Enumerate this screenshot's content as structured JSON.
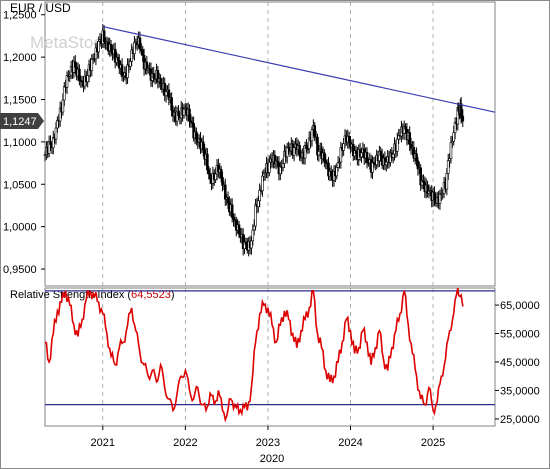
{
  "chart_data": [
    {
      "type": "candlestick",
      "title": "EUR / USD",
      "watermark": "MetaStock",
      "y_ticks": [
        "1,2500",
        "1,2000",
        "1,1500",
        "1,1000",
        "1,0500",
        "1,0000",
        "0,9500"
      ],
      "y_tick_values": [
        1.25,
        1.2,
        1.15,
        1.1,
        1.05,
        1.0,
        0.95
      ],
      "ylim": [
        0.93,
        1.265
      ],
      "last_price_label": "1,1247",
      "last_price": 1.1247,
      "trendline": [
        {
          "date": 2021.0,
          "price": 1.236
        },
        {
          "date": 2025.75,
          "price": 1.135
        }
      ],
      "closes": [
        [
          2020.3,
          1.085
        ],
        [
          2020.35,
          1.095
        ],
        [
          2020.4,
          1.1
        ],
        [
          2020.45,
          1.125
        ],
        [
          2020.5,
          1.14
        ],
        [
          2020.55,
          1.17
        ],
        [
          2020.6,
          1.18
        ],
        [
          2020.65,
          1.19
        ],
        [
          2020.7,
          1.18
        ],
        [
          2020.75,
          1.17
        ],
        [
          2020.8,
          1.175
        ],
        [
          2020.85,
          1.19
        ],
        [
          2020.9,
          1.2
        ],
        [
          2020.95,
          1.215
        ],
        [
          2021.0,
          1.225
        ],
        [
          2021.05,
          1.215
        ],
        [
          2021.1,
          1.21
        ],
        [
          2021.15,
          1.2
        ],
        [
          2021.2,
          1.19
        ],
        [
          2021.25,
          1.175
        ],
        [
          2021.3,
          1.185
        ],
        [
          2021.35,
          1.205
        ],
        [
          2021.4,
          1.22
        ],
        [
          2021.45,
          1.215
        ],
        [
          2021.5,
          1.19
        ],
        [
          2021.55,
          1.185
        ],
        [
          2021.6,
          1.175
        ],
        [
          2021.65,
          1.18
        ],
        [
          2021.7,
          1.17
        ],
        [
          2021.75,
          1.16
        ],
        [
          2021.8,
          1.155
        ],
        [
          2021.85,
          1.13
        ],
        [
          2021.9,
          1.13
        ],
        [
          2021.95,
          1.135
        ],
        [
          2022.0,
          1.14
        ],
        [
          2022.05,
          1.13
        ],
        [
          2022.1,
          1.11
        ],
        [
          2022.15,
          1.1
        ],
        [
          2022.2,
          1.095
        ],
        [
          2022.25,
          1.08
        ],
        [
          2022.3,
          1.055
        ],
        [
          2022.35,
          1.06
        ],
        [
          2022.4,
          1.07
        ],
        [
          2022.45,
          1.05
        ],
        [
          2022.5,
          1.03
        ],
        [
          2022.55,
          1.02
        ],
        [
          2022.6,
          1.005
        ],
        [
          2022.65,
          0.995
        ],
        [
          2022.7,
          0.98
        ],
        [
          2022.75,
          0.975
        ],
        [
          2022.8,
          0.98
        ],
        [
          2022.85,
          1.02
        ],
        [
          2022.9,
          1.04
        ],
        [
          2022.95,
          1.065
        ],
        [
          2023.0,
          1.07
        ],
        [
          2023.05,
          1.08
        ],
        [
          2023.1,
          1.075
        ],
        [
          2023.15,
          1.065
        ],
        [
          2023.2,
          1.085
        ],
        [
          2023.25,
          1.095
        ],
        [
          2023.3,
          1.09
        ],
        [
          2023.35,
          1.095
        ],
        [
          2023.4,
          1.08
        ],
        [
          2023.45,
          1.09
        ],
        [
          2023.5,
          1.1
        ],
        [
          2023.55,
          1.12
        ],
        [
          2023.6,
          1.09
        ],
        [
          2023.65,
          1.085
        ],
        [
          2023.7,
          1.075
        ],
        [
          2023.75,
          1.06
        ],
        [
          2023.8,
          1.06
        ],
        [
          2023.85,
          1.075
        ],
        [
          2023.9,
          1.095
        ],
        [
          2023.95,
          1.105
        ],
        [
          2024.0,
          1.095
        ],
        [
          2024.05,
          1.085
        ],
        [
          2024.1,
          1.085
        ],
        [
          2024.15,
          1.09
        ],
        [
          2024.2,
          1.08
        ],
        [
          2024.25,
          1.07
        ],
        [
          2024.3,
          1.075
        ],
        [
          2024.35,
          1.085
        ],
        [
          2024.4,
          1.075
        ],
        [
          2024.45,
          1.08
        ],
        [
          2024.5,
          1.085
        ],
        [
          2024.55,
          1.095
        ],
        [
          2024.6,
          1.11
        ],
        [
          2024.65,
          1.115
        ],
        [
          2024.7,
          1.105
        ],
        [
          2024.75,
          1.09
        ],
        [
          2024.8,
          1.08
        ],
        [
          2024.85,
          1.055
        ],
        [
          2024.9,
          1.045
        ],
        [
          2024.95,
          1.04
        ],
        [
          2025.0,
          1.035
        ],
        [
          2025.05,
          1.03
        ],
        [
          2025.1,
          1.04
        ],
        [
          2025.15,
          1.05
        ],
        [
          2025.2,
          1.085
        ],
        [
          2025.25,
          1.11
        ],
        [
          2025.3,
          1.135
        ],
        [
          2025.33,
          1.14
        ],
        [
          2025.36,
          1.125
        ]
      ]
    },
    {
      "type": "line",
      "title_prefix": "Relative Strength Index (",
      "title_value": "64,5523",
      "title_suffix": ")",
      "y_ticks": [
        "65,0000",
        "55,0000",
        "45,0000",
        "35,0000",
        "25,0000"
      ],
      "y_tick_values": [
        65,
        55,
        45,
        35,
        25
      ],
      "ylim": [
        22.5,
        71
      ],
      "reference_lines": [
        70,
        30
      ],
      "x_ticks": [
        "2021",
        "2022",
        "2023",
        "2024",
        "2025"
      ],
      "x_tick_values": [
        2021.0,
        2022.0,
        2023.0,
        2024.0,
        2025.0
      ],
      "x_label": "2020",
      "x_range": [
        2020.3,
        2025.75
      ],
      "series": [
        {
          "values": [
            [
              2020.3,
              52
            ],
            [
              2020.35,
              45
            ],
            [
              2020.4,
              55
            ],
            [
              2020.45,
              63
            ],
            [
              2020.5,
              66
            ],
            [
              2020.55,
              70
            ],
            [
              2020.6,
              65
            ],
            [
              2020.65,
              58
            ],
            [
              2020.7,
              54
            ],
            [
              2020.75,
              60
            ],
            [
              2020.8,
              67
            ],
            [
              2020.85,
              70
            ],
            [
              2020.9,
              68
            ],
            [
              2020.95,
              66
            ],
            [
              2021.0,
              62
            ],
            [
              2021.05,
              55
            ],
            [
              2021.1,
              47
            ],
            [
              2021.15,
              44
            ],
            [
              2021.2,
              50
            ],
            [
              2021.25,
              52
            ],
            [
              2021.3,
              58
            ],
            [
              2021.35,
              64
            ],
            [
              2021.4,
              56
            ],
            [
              2021.45,
              48
            ],
            [
              2021.5,
              44
            ],
            [
              2021.55,
              40
            ],
            [
              2021.6,
              42
            ],
            [
              2021.65,
              38
            ],
            [
              2021.7,
              44
            ],
            [
              2021.75,
              36
            ],
            [
              2021.8,
              32
            ],
            [
              2021.85,
              28
            ],
            [
              2021.9,
              34
            ],
            [
              2021.95,
              40
            ],
            [
              2022.0,
              42
            ],
            [
              2022.05,
              35
            ],
            [
              2022.1,
              32
            ],
            [
              2022.15,
              36
            ],
            [
              2022.2,
              30
            ],
            [
              2022.25,
              28
            ],
            [
              2022.3,
              34
            ],
            [
              2022.35,
              30
            ],
            [
              2022.4,
              35
            ],
            [
              2022.45,
              28
            ],
            [
              2022.5,
              26
            ],
            [
              2022.55,
              32
            ],
            [
              2022.6,
              30
            ],
            [
              2022.65,
              27
            ],
            [
              2022.7,
              30
            ],
            [
              2022.75,
              28
            ],
            [
              2022.8,
              36
            ],
            [
              2022.85,
              52
            ],
            [
              2022.9,
              62
            ],
            [
              2022.95,
              65
            ],
            [
              2023.0,
              64
            ],
            [
              2023.05,
              58
            ],
            [
              2023.1,
              52
            ],
            [
              2023.15,
              58
            ],
            [
              2023.2,
              63
            ],
            [
              2023.25,
              60
            ],
            [
              2023.3,
              55
            ],
            [
              2023.35,
              50
            ],
            [
              2023.4,
              56
            ],
            [
              2023.45,
              60
            ],
            [
              2023.5,
              64
            ],
            [
              2023.55,
              70
            ],
            [
              2023.6,
              55
            ],
            [
              2023.65,
              50
            ],
            [
              2023.7,
              42
            ],
            [
              2023.75,
              38
            ],
            [
              2023.8,
              40
            ],
            [
              2023.85,
              45
            ],
            [
              2023.9,
              52
            ],
            [
              2023.95,
              60
            ],
            [
              2024.0,
              56
            ],
            [
              2024.05,
              48
            ],
            [
              2024.1,
              50
            ],
            [
              2024.15,
              56
            ],
            [
              2024.2,
              52
            ],
            [
              2024.25,
              44
            ],
            [
              2024.3,
              50
            ],
            [
              2024.35,
              56
            ],
            [
              2024.4,
              46
            ],
            [
              2024.45,
              42
            ],
            [
              2024.5,
              50
            ],
            [
              2024.55,
              56
            ],
            [
              2024.6,
              62
            ],
            [
              2024.65,
              70
            ],
            [
              2024.7,
              58
            ],
            [
              2024.75,
              48
            ],
            [
              2024.8,
              40
            ],
            [
              2024.85,
              32
            ],
            [
              2024.9,
              30
            ],
            [
              2024.95,
              36
            ],
            [
              2025.0,
              28
            ],
            [
              2025.05,
              31
            ],
            [
              2025.1,
              40
            ],
            [
              2025.15,
              46
            ],
            [
              2025.2,
              56
            ],
            [
              2025.25,
              62
            ],
            [
              2025.3,
              71
            ],
            [
              2025.33,
              68
            ],
            [
              2025.36,
              64.5
            ]
          ]
        }
      ]
    }
  ]
}
